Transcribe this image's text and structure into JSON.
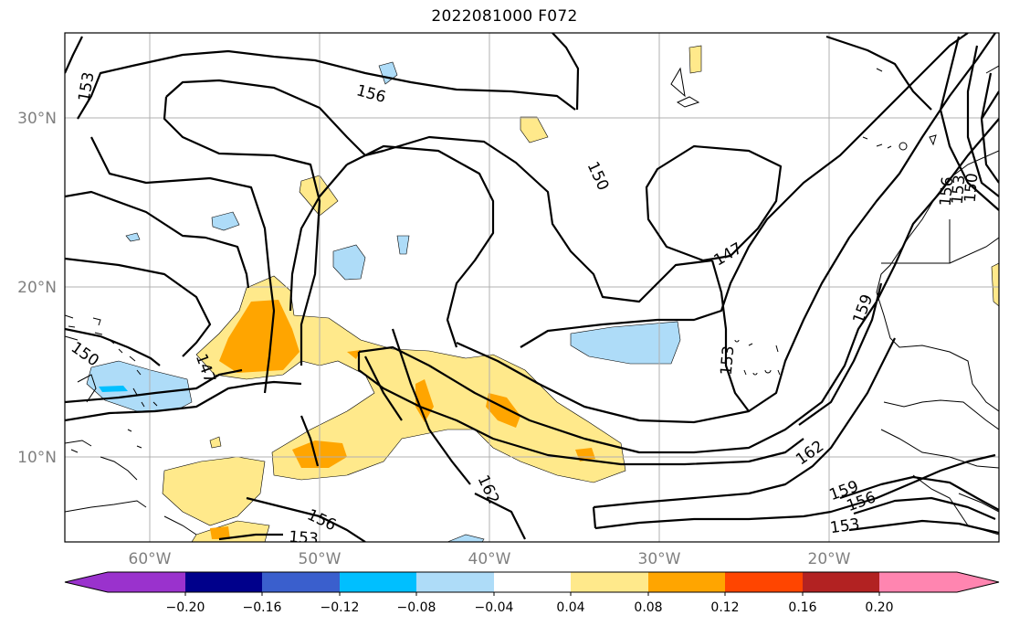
{
  "title": "2022081000 F072",
  "axes": {
    "x_ticks": [
      "60°W",
      "50°W",
      "40°W",
      "30°W",
      "20°W"
    ],
    "y_ticks": [
      "30°N",
      "20°N",
      "10°N"
    ],
    "grid": true
  },
  "colorbar": {
    "tick_labels": [
      "−0.20",
      "−0.16",
      "−0.12",
      "−0.08",
      "−0.04",
      "0.04",
      "0.08",
      "0.12",
      "0.16",
      "0.20"
    ],
    "colors": [
      "#9a32cd",
      "#00008b",
      "#3a5fcd",
      "#00bfff",
      "#aedcf8",
      "#ffffff",
      "#ffe98b",
      "#ffa500",
      "#ff4500",
      "#b22222",
      "#ff85b0"
    ],
    "extend": "both"
  },
  "contour_labels": [
    "153",
    "156",
    "150",
    "147",
    "159",
    "153",
    "162",
    "156",
    "153",
    "159",
    "156",
    "153",
    "162",
    "150",
    "147",
    "156",
    "153",
    "150"
  ],
  "colors": {
    "grid": "#b0b0b0",
    "contour": "#000000",
    "tick_label": "#808080"
  }
}
